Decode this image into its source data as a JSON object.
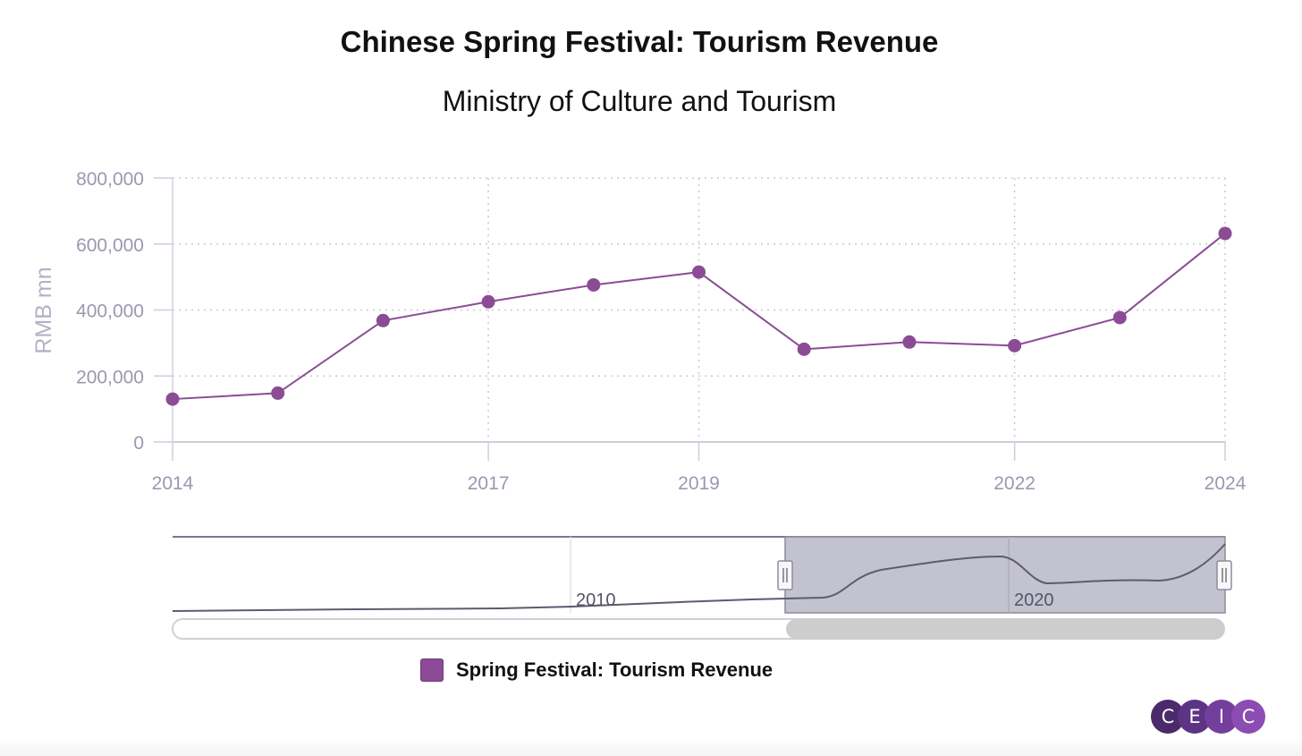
{
  "title": "Chinese Spring Festival: Tourism Revenue",
  "subtitle": "Ministry of Culture and Tourism",
  "legend": {
    "label": "Spring Festival: Tourism Revenue",
    "color": "#8b4c95"
  },
  "navigator": {
    "labels": [
      "2010",
      "2020"
    ]
  },
  "logo": {
    "letters": [
      "C",
      "E",
      "I",
      "C"
    ],
    "colors": [
      "#4a2a6b",
      "#5d3383",
      "#743f9c",
      "#8c4db2"
    ]
  },
  "chart_data": {
    "type": "line",
    "title": "Chinese Spring Festival: Tourism Revenue",
    "subtitle": "Ministry of Culture and Tourism",
    "ylabel": "RMB mn",
    "ylim": [
      0,
      800000
    ],
    "yticks": [
      "0",
      "200,000",
      "400,000",
      "600,000",
      "800,000"
    ],
    "yvalues": [
      0,
      200000,
      400000,
      600000,
      800000
    ],
    "xticks": [
      "2014",
      "2017",
      "2019",
      "2022",
      "2024"
    ],
    "grid": true,
    "legend_position": "bottom",
    "series": [
      {
        "name": "Spring Festival: Tourism Revenue",
        "color": "#8b4c95",
        "x": [
          2014,
          2015,
          2016,
          2017,
          2018,
          2019,
          2020,
          2021,
          2022,
          2023,
          2024
        ],
        "values": [
          130000,
          148000,
          368000,
          425000,
          476000,
          515000,
          281000,
          303000,
          292000,
          377000,
          632000
        ]
      }
    ]
  }
}
